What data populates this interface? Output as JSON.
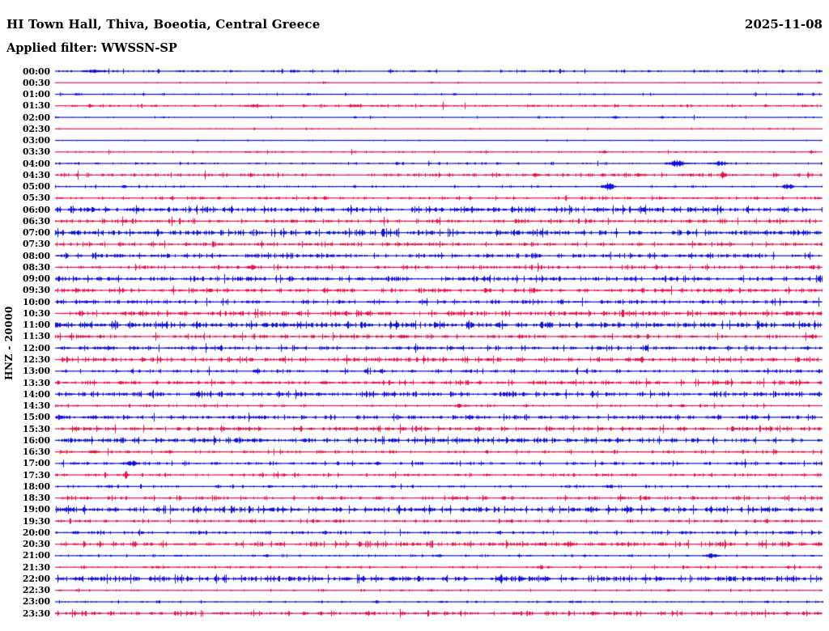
{
  "header": {
    "title": "HI Town Hall, Thiva, Boeotia, Central Greece",
    "date": "2025-11-08",
    "filter_label": "Applied filter: WWSSN-SP"
  },
  "axis": {
    "channel_scale_label": "HNZ - 20000"
  },
  "colors": {
    "trace_blue": "#0f10dc",
    "trace_red": "#e8124a",
    "text": "#000000",
    "background": "#ffffff"
  },
  "chart_data": {
    "type": "line",
    "subtype": "helicorder-seismogram",
    "title": "HI Town Hall, Thiva, Boeotia, Central Greece",
    "date": "2025-11-08",
    "applied_filter": "WWSSN-SP",
    "channel": "HNZ",
    "amplitude_scale": 20000,
    "row_interval_minutes": 30,
    "row_color_cycle": [
      "blue",
      "red"
    ],
    "legend_position": "none",
    "grid": false,
    "rows": [
      {
        "time": "00:00",
        "color": "blue",
        "noise": 0.7,
        "events": [
          [
            0.05,
            2.0,
            14
          ],
          [
            0.31,
            2.2,
            3
          ]
        ]
      },
      {
        "time": "00:30",
        "color": "red",
        "noise": 0.3,
        "events": [
          [
            0.35,
            1.8,
            3
          ],
          [
            0.49,
            1.5,
            2
          ],
          [
            0.995,
            1.5,
            2
          ]
        ]
      },
      {
        "time": "01:00",
        "color": "blue",
        "noise": 0.5,
        "events": [
          [
            0.03,
            1.5,
            6
          ],
          [
            0.33,
            1.5,
            4
          ],
          [
            0.97,
            1.5,
            4
          ]
        ]
      },
      {
        "time": "01:30",
        "color": "red",
        "noise": 0.7,
        "events": [
          [
            0.045,
            2.2,
            4
          ],
          [
            0.26,
            1.8,
            12
          ],
          [
            0.39,
            1.8,
            10
          ]
        ]
      },
      {
        "time": "02:00",
        "color": "blue",
        "noise": 0.35,
        "events": [
          [
            0.39,
            1.5,
            3
          ],
          [
            0.73,
            1.5,
            6
          ],
          [
            0.79,
            1.5,
            4
          ]
        ]
      },
      {
        "time": "02:30",
        "color": "red",
        "noise": 0.35,
        "events": [
          [
            0.26,
            1.3,
            2
          ],
          [
            0.54,
            1.3,
            2
          ],
          [
            0.93,
            1.5,
            2
          ]
        ]
      },
      {
        "time": "03:00",
        "color": "blue",
        "noise": 0.35,
        "events": [
          [
            0.185,
            1.5,
            2
          ],
          [
            0.64,
            1.2,
            2
          ]
        ]
      },
      {
        "time": "03:30",
        "color": "red",
        "noise": 0.55,
        "events": [
          [
            0.715,
            2.0,
            4
          ],
          [
            0.985,
            2.0,
            3
          ]
        ]
      },
      {
        "time": "04:00",
        "color": "blue",
        "noise": 0.6,
        "events": [
          [
            0.445,
            1.8,
            3
          ],
          [
            0.81,
            3.8,
            10
          ],
          [
            0.865,
            3.0,
            7
          ]
        ]
      },
      {
        "time": "04:30",
        "color": "red",
        "noise": 0.9,
        "events": [
          [
            0.625,
            2.2,
            4
          ],
          [
            0.76,
            2.2,
            4
          ],
          [
            0.87,
            4.8,
            4
          ]
        ]
      },
      {
        "time": "05:00",
        "color": "blue",
        "noise": 0.6,
        "events": [
          [
            0.09,
            1.8,
            4
          ],
          [
            0.39,
            2.0,
            3
          ],
          [
            0.72,
            5.0,
            7
          ],
          [
            0.955,
            3.2,
            7
          ]
        ]
      },
      {
        "time": "05:30",
        "color": "red",
        "noise": 0.8,
        "events": [
          [
            0.35,
            2.2,
            3
          ],
          [
            0.995,
            2.0,
            3
          ]
        ]
      },
      {
        "time": "06:00",
        "color": "blue",
        "noise": 1.4,
        "events": []
      },
      {
        "time": "06:30",
        "color": "red",
        "noise": 1.1,
        "events": []
      },
      {
        "time": "07:00",
        "color": "blue",
        "noise": 1.4,
        "events": [
          [
            0.945,
            2.5,
            5
          ]
        ]
      },
      {
        "time": "07:30",
        "color": "red",
        "noise": 1.0,
        "events": []
      },
      {
        "time": "08:00",
        "color": "blue",
        "noise": 1.2,
        "events": []
      },
      {
        "time": "08:30",
        "color": "red",
        "noise": 1.0,
        "events": [
          [
            0.255,
            3.5,
            6
          ],
          [
            0.985,
            2.5,
            4
          ]
        ]
      },
      {
        "time": "09:00",
        "color": "blue",
        "noise": 1.3,
        "events": []
      },
      {
        "time": "09:30",
        "color": "red",
        "noise": 1.1,
        "events": [
          [
            0.99,
            2.2,
            3
          ]
        ]
      },
      {
        "time": "10:00",
        "color": "blue",
        "noise": 1.1,
        "events": [
          [
            0.04,
            1.8,
            8
          ],
          [
            0.1,
            1.8,
            6
          ]
        ]
      },
      {
        "time": "10:30",
        "color": "red",
        "noise": 1.3,
        "events": [
          [
            0.37,
            2.0,
            3
          ],
          [
            0.86,
            2.0,
            4
          ]
        ]
      },
      {
        "time": "11:00",
        "color": "blue",
        "noise": 1.6,
        "events": [
          [
            0.185,
            2.0,
            4
          ]
        ]
      },
      {
        "time": "11:30",
        "color": "red",
        "noise": 1.0,
        "events": [
          [
            0.035,
            2.0,
            6
          ],
          [
            0.45,
            2.0,
            4
          ],
          [
            0.985,
            2.5,
            4
          ]
        ]
      },
      {
        "time": "12:00",
        "color": "blue",
        "noise": 1.1,
        "events": [
          [
            0.065,
            2.0,
            10
          ],
          [
            0.98,
            2.2,
            4
          ]
        ]
      },
      {
        "time": "12:30",
        "color": "red",
        "noise": 1.3,
        "events": []
      },
      {
        "time": "13:00",
        "color": "blue",
        "noise": 0.9,
        "events": [
          [
            0.263,
            4.5,
            3
          ],
          [
            0.425,
            3.0,
            4
          ],
          [
            0.995,
            2.5,
            2
          ]
        ]
      },
      {
        "time": "13:30",
        "color": "red",
        "noise": 1.1,
        "events": [
          [
            0.35,
            2.2,
            6
          ],
          [
            0.96,
            2.0,
            4
          ]
        ]
      },
      {
        "time": "14:00",
        "color": "blue",
        "noise": 1.3,
        "events": []
      },
      {
        "time": "14:30",
        "color": "red",
        "noise": 0.7,
        "events": [
          [
            0.525,
            2.5,
            4
          ],
          [
            0.815,
            1.8,
            4
          ]
        ]
      },
      {
        "time": "15:00",
        "color": "blue",
        "noise": 1.1,
        "events": [
          [
            0.01,
            2.0,
            6
          ],
          [
            0.05,
            2.0,
            5
          ],
          [
            0.265,
            2.0,
            5
          ]
        ]
      },
      {
        "time": "15:30",
        "color": "red",
        "noise": 1.2,
        "events": []
      },
      {
        "time": "16:00",
        "color": "blue",
        "noise": 1.4,
        "events": []
      },
      {
        "time": "16:30",
        "color": "red",
        "noise": 0.8,
        "events": [
          [
            0.05,
            2.0,
            8
          ],
          [
            0.095,
            1.8,
            3
          ],
          [
            0.145,
            1.8,
            10
          ],
          [
            0.8,
            2.0,
            4
          ]
        ]
      },
      {
        "time": "17:00",
        "color": "blue",
        "noise": 0.9,
        "events": [
          [
            0.1,
            4.0,
            6
          ],
          [
            0.42,
            2.0,
            4
          ]
        ]
      },
      {
        "time": "17:30",
        "color": "red",
        "noise": 0.8,
        "events": [
          [
            0.092,
            4.5,
            3
          ]
        ]
      },
      {
        "time": "18:00",
        "color": "blue",
        "noise": 0.7,
        "events": [
          [
            0.28,
            1.8,
            4
          ],
          [
            0.44,
            1.8,
            4
          ],
          [
            0.72,
            1.8,
            6
          ]
        ]
      },
      {
        "time": "18:30",
        "color": "red",
        "noise": 1.0,
        "events": [
          [
            0.52,
            2.2,
            6
          ],
          [
            0.56,
            2.0,
            4
          ],
          [
            0.77,
            2.0,
            5
          ]
        ]
      },
      {
        "time": "19:00",
        "color": "blue",
        "noise": 1.4,
        "events": []
      },
      {
        "time": "19:30",
        "color": "red",
        "noise": 0.8,
        "events": [
          [
            0.255,
            2.0,
            4
          ],
          [
            0.365,
            2.0,
            3
          ]
        ]
      },
      {
        "time": "20:00",
        "color": "blue",
        "noise": 0.9,
        "events": [
          [
            0.025,
            2.0,
            6
          ],
          [
            0.82,
            2.0,
            8
          ],
          [
            0.96,
            1.8,
            6
          ]
        ]
      },
      {
        "time": "20:30",
        "color": "red",
        "noise": 1.2,
        "events": [
          [
            0.67,
            3.5,
            5
          ],
          [
            0.995,
            2.5,
            3
          ]
        ]
      },
      {
        "time": "21:00",
        "color": "blue",
        "noise": 0.6,
        "events": [
          [
            0.275,
            1.8,
            4
          ],
          [
            0.5,
            1.8,
            4
          ],
          [
            0.69,
            1.8,
            3
          ],
          [
            0.75,
            1.8,
            3
          ],
          [
            0.855,
            2.8,
            8
          ]
        ]
      },
      {
        "time": "21:30",
        "color": "red",
        "noise": 0.7,
        "events": [
          [
            0.9,
            2.0,
            3
          ],
          [
            0.955,
            2.0,
            3
          ]
        ]
      },
      {
        "time": "22:00",
        "color": "blue",
        "noise": 1.5,
        "events": []
      },
      {
        "time": "22:30",
        "color": "red",
        "noise": 0.5,
        "events": [
          [
            0.49,
            1.8,
            3
          ],
          [
            0.8,
            1.5,
            3
          ]
        ]
      },
      {
        "time": "23:00",
        "color": "blue",
        "noise": 0.5,
        "events": [
          [
            0.28,
            1.5,
            3
          ],
          [
            0.42,
            1.5,
            3
          ],
          [
            0.68,
            1.5,
            4
          ]
        ]
      },
      {
        "time": "23:30",
        "color": "red",
        "noise": 1.1,
        "events": [
          [
            0.995,
            2.2,
            3
          ]
        ]
      }
    ]
  }
}
